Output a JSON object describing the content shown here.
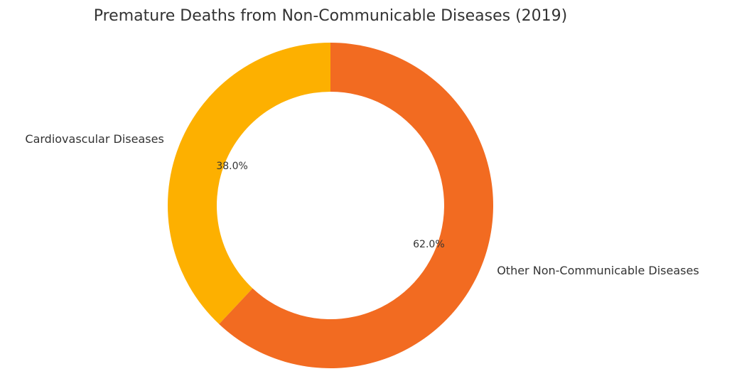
{
  "chart_data": {
    "type": "pie",
    "title": "Premature Deaths from Non-Communicable Diseases (2019)",
    "donut": true,
    "categories": [
      "Cardiovascular Diseases",
      "Other Non-Communicable Diseases"
    ],
    "values": [
      38.0,
      62.0
    ],
    "value_labels": [
      "38.0%",
      "62.0%"
    ],
    "colors": [
      "#FDB000",
      "#F26B21"
    ],
    "start_angle_position": "top",
    "direction": "counterclockwise",
    "legend": "none"
  }
}
